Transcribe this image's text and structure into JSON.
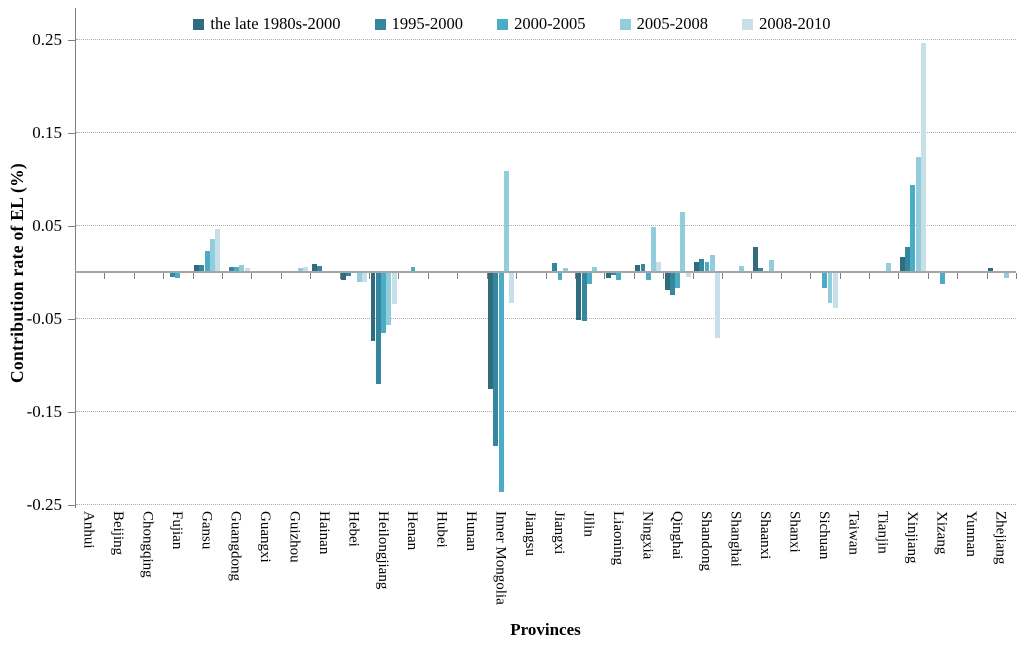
{
  "chart_data": {
    "type": "bar",
    "title": "",
    "xlabel": "Provinces",
    "ylabel": "Contribution rate of EL  (%)",
    "ylim": [
      -0.25,
      0.25
    ],
    "yticks": [
      0.25,
      0.15,
      0.05,
      -0.05,
      -0.15,
      -0.25
    ],
    "ytick_labels": [
      "0.25",
      "0.15",
      "0.05",
      "-0.05",
      "-0.15",
      "-0.25"
    ],
    "grid": "horizontal dotted at labeled ticks, solid line at zero",
    "legend_position": "top-center",
    "axis_color": "#808080",
    "categories": [
      "Anhui",
      "Beijing",
      "Chongqing",
      "Fujian",
      "Gansu",
      "Guangdong",
      "Guangxi",
      "Guizhou",
      "Hainan",
      "Hebei",
      "Heilongjiang",
      "Henan",
      "Hubei",
      "Hunan",
      "Inner Mongolia",
      "Jiangsu",
      "Jiangxi",
      "Jilin",
      "Liaoning",
      "Ningxia",
      "Qinghai",
      "Shandong",
      "Shanghai",
      "Shaanxi",
      "Shanxi",
      "Sichuan",
      "Taiwan",
      "Tianjin",
      "Xinjiang",
      "Xizang",
      "Yunnan",
      "Zhejiang"
    ],
    "series": [
      {
        "name": "the late 1980s-2000",
        "color": "#2E6C7E",
        "values": [
          0,
          0,
          0,
          0,
          0.006,
          0,
          0,
          0,
          0.007,
          -0.007,
          -0.073,
          0,
          0,
          0,
          -0.125,
          0,
          0,
          -0.05,
          -0.005,
          0.006,
          -0.018,
          0.01,
          0,
          0.026,
          0,
          0,
          0,
          0,
          0.015,
          0,
          0,
          0.003
        ]
      },
      {
        "name": "1995-2000",
        "color": "#34879E",
        "values": [
          0,
          0,
          0,
          -0.004,
          0.006,
          0.004,
          0,
          0,
          0.005,
          -0.003,
          -0.119,
          0,
          0,
          0,
          -0.186,
          0,
          0.009,
          -0.052,
          -0.002,
          0.007,
          -0.024,
          0.013,
          0,
          0.003,
          0,
          0,
          0,
          0,
          0.026,
          0,
          0,
          0
        ]
      },
      {
        "name": "2000-2005",
        "color": "#4BACC6",
        "values": [
          0,
          0,
          0,
          -0.005,
          0.022,
          0.004,
          0,
          0,
          0,
          0,
          -0.065,
          0.004,
          0,
          0,
          -0.235,
          0,
          -0.007,
          -0.012,
          -0.007,
          -0.007,
          -0.016,
          0.01,
          0,
          0,
          0,
          -0.016,
          0,
          0,
          0.092,
          -0.012,
          0,
          0
        ]
      },
      {
        "name": "2005-2008",
        "color": "#92CDDC",
        "values": [
          0,
          0,
          0,
          0,
          0.034,
          0.006,
          0,
          0.003,
          0,
          -0.01,
          -0.056,
          0,
          0,
          0,
          0.108,
          0,
          0.003,
          0.004,
          0,
          0.047,
          0.063,
          0.017,
          0.005,
          0.012,
          0,
          -0.032,
          0,
          0.009,
          0.123,
          0,
          0,
          -0.005
        ]
      },
      {
        "name": "2008-2010",
        "color": "#C7DFE9",
        "values": [
          0,
          0,
          0,
          0,
          0.045,
          0.003,
          0,
          0.004,
          0,
          -0.01,
          -0.033,
          0,
          0,
          0,
          -0.032,
          0,
          0,
          0,
          0,
          0.01,
          -0.004,
          -0.07,
          0,
          0,
          0,
          -0.038,
          0,
          0,
          0.245,
          0,
          0,
          0
        ]
      }
    ]
  }
}
